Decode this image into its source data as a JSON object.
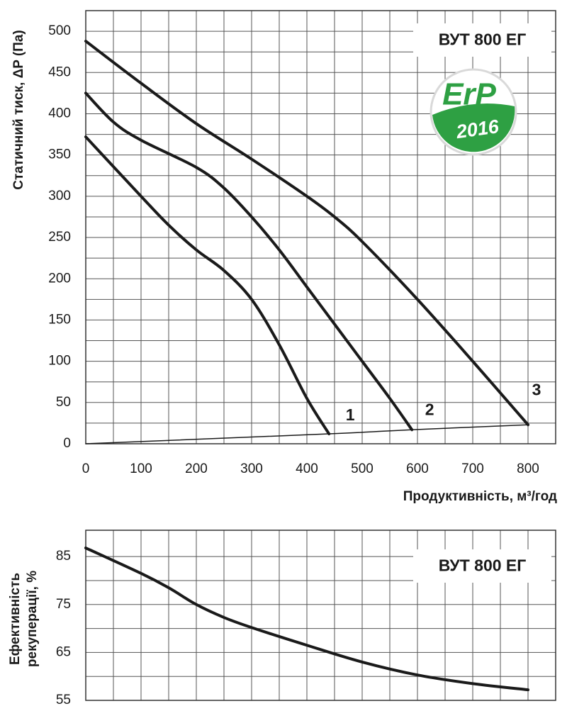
{
  "chart_data": [
    {
      "type": "line",
      "title": "ВУТ 800 ЕГ",
      "xlabel": "Продуктивність, м³/год",
      "ylabel": [
        "Статичний тиск, ΔP (Па)"
      ],
      "xlim": [
        0,
        850
      ],
      "ylim": [
        0,
        525
      ],
      "xticks": [
        0,
        100,
        200,
        300,
        400,
        500,
        600,
        700,
        800
      ],
      "yticks": [
        0,
        50,
        100,
        150,
        200,
        250,
        300,
        350,
        400,
        450,
        500
      ],
      "xgrid": [
        50,
        100,
        150,
        200,
        250,
        300,
        350,
        400,
        450,
        500,
        550,
        600,
        650,
        700,
        750,
        800
      ],
      "ygrid": [
        25,
        50,
        75,
        100,
        125,
        150,
        175,
        200,
        225,
        250,
        275,
        300,
        325,
        350,
        375,
        400,
        425,
        450,
        475,
        500
      ],
      "badge": {
        "text": "ErP",
        "year": "2016"
      },
      "series": [
        {
          "name": "1",
          "color": "#1a1a1a",
          "line_width": 4,
          "x": [
            0,
            100,
            150,
            200,
            250,
            300,
            350,
            400,
            440
          ],
          "values": [
            372,
            300,
            265,
            235,
            210,
            175,
            120,
            55,
            12
          ]
        },
        {
          "name": "2",
          "color": "#1a1a1a",
          "line_width": 4,
          "x": [
            0,
            50,
            100,
            200,
            250,
            300,
            350,
            400,
            450,
            500,
            550,
            590
          ],
          "values": [
            425,
            390,
            368,
            335,
            310,
            275,
            235,
            190,
            145,
            100,
            55,
            17
          ]
        },
        {
          "name": "3",
          "color": "#1a1a1a",
          "line_width": 4,
          "x": [
            0,
            100,
            200,
            300,
            400,
            450,
            500,
            600,
            700,
            800
          ],
          "values": [
            488,
            437,
            388,
            345,
            300,
            275,
            245,
            175,
            100,
            23
          ]
        },
        {
          "color": "#1a1a1a",
          "line_width": 1.5,
          "x": [
            0,
            440,
            590,
            800
          ],
          "values": [
            0,
            12,
            17,
            23
          ]
        }
      ]
    },
    {
      "type": "line",
      "title": "ВУТ 800 ЕГ",
      "ylabel": [
        "Ефективність",
        "рекуперації, %"
      ],
      "xlim": [
        0,
        850
      ],
      "ylim": [
        55,
        90.5
      ],
      "yticks": [
        55,
        65,
        75,
        85
      ],
      "xgrid": [
        50,
        100,
        150,
        200,
        250,
        300,
        350,
        400,
        450,
        500,
        550,
        600,
        650,
        700,
        750,
        800
      ],
      "ygrid": [
        60,
        65,
        70,
        75,
        80,
        85
      ],
      "series": [
        {
          "color": "#1a1a1a",
          "line_width": 4,
          "x": [
            0,
            100,
            150,
            200,
            250,
            300,
            400,
            500,
            600,
            700,
            800
          ],
          "values": [
            86.8,
            81.5,
            78.5,
            75,
            72.3,
            70.2,
            66.5,
            63,
            60.3,
            58.5,
            57.2
          ]
        }
      ]
    }
  ]
}
